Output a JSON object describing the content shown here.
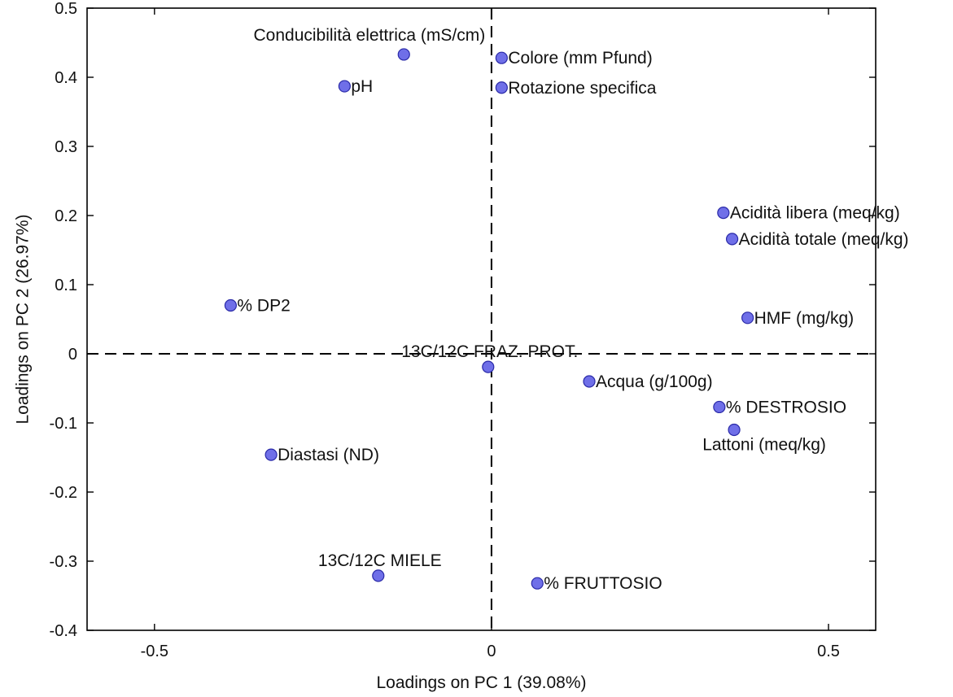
{
  "chart_data": {
    "type": "scatter",
    "xlabel": "Loadings on PC 1 (39.08%)",
    "ylabel": "Loadings on PC 2 (26.97%)",
    "xlim": [
      -0.6,
      0.57
    ],
    "ylim": [
      -0.4,
      0.5
    ],
    "xticks": [
      -0.5,
      0,
      0.5
    ],
    "xtick_labels": [
      "-0.5",
      "0",
      "0.5"
    ],
    "yticks": [
      0.5,
      0.4,
      0.3,
      0.2,
      0.1,
      0,
      -0.1,
      -0.2,
      -0.3,
      -0.4
    ],
    "ytick_labels": [
      "0.5",
      "0.4",
      "0.3",
      "0.2",
      "0.1",
      "0",
      "-0.1",
      "-0.2",
      "-0.3",
      "-0.4"
    ],
    "grid": false,
    "zero_lines": true,
    "marker_color": "#6f6fe8",
    "marker_edge": "#2a2aa8",
    "points": [
      {
        "label": "Conducibilità elettrica (mS/cm)",
        "x": -0.13,
        "y": 0.433,
        "pos": "above-left"
      },
      {
        "label": "Colore (mm Pfund)",
        "x": 0.015,
        "y": 0.428,
        "pos": "right"
      },
      {
        "label": "pH",
        "x": -0.218,
        "y": 0.387,
        "pos": "right"
      },
      {
        "label": "Rotazione specifica",
        "x": 0.015,
        "y": 0.385,
        "pos": "right"
      },
      {
        "label": "Acidità libera (meq/kg)",
        "x": 0.344,
        "y": 0.204,
        "pos": "right"
      },
      {
        "label": "Acidità totale (meq/kg)",
        "x": 0.357,
        "y": 0.166,
        "pos": "right"
      },
      {
        "label": "% DP2",
        "x": -0.387,
        "y": 0.07,
        "pos": "right"
      },
      {
        "label": "HMF (mg/kg)",
        "x": 0.38,
        "y": 0.052,
        "pos": "right"
      },
      {
        "label": "13C/12C FRAZ. PROT.",
        "x": -0.005,
        "y": -0.019,
        "pos": "above-center"
      },
      {
        "label": "Acqua (g/100g)",
        "x": 0.145,
        "y": -0.04,
        "pos": "right"
      },
      {
        "label": "%  DESTROSIO",
        "x": 0.338,
        "y": -0.077,
        "pos": "right"
      },
      {
        "label": "Lattoni (meq/kg)",
        "x": 0.36,
        "y": -0.11,
        "pos": "below-center"
      },
      {
        "label": "Diastasi (ND)",
        "x": -0.327,
        "y": -0.146,
        "pos": "right"
      },
      {
        "label": "13C/12C MIELE",
        "x": -0.168,
        "y": -0.321,
        "pos": "above-center"
      },
      {
        "label": "% FRUTTOSIO",
        "x": 0.068,
        "y": -0.332,
        "pos": "right"
      }
    ]
  }
}
